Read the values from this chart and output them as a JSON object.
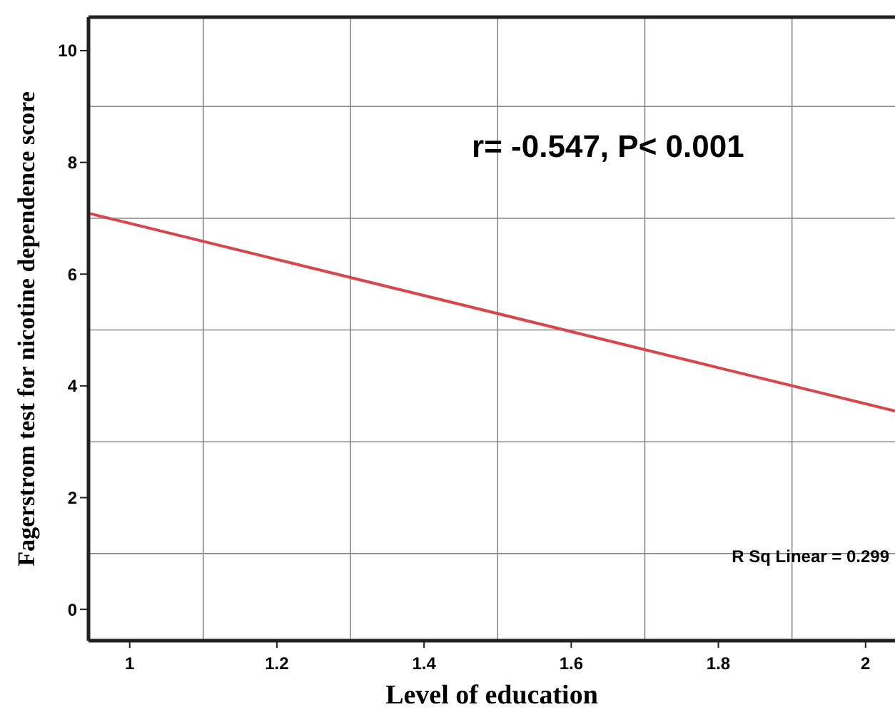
{
  "chart_data": {
    "type": "line",
    "xlabel": "Level of education",
    "ylabel": "Fagerstrom test for nicotine dependence score",
    "x": [
      0.944,
      2.04
    ],
    "series": [
      {
        "color": "#d9454a",
        "values": [
          7.09,
          3.55
        ]
      }
    ],
    "xlim": [
      0.944,
      2.04
    ],
    "xticks": [
      1,
      1.2,
      1.4,
      1.6,
      1.8,
      2
    ],
    "ylim": [
      -0.56,
      10.6
    ],
    "yticks": [
      0,
      2,
      4,
      6,
      8,
      10
    ],
    "grid": true,
    "marker": "none",
    "line_style": "solid",
    "annotations": [
      "r= -0.547, P< 0.001",
      "R Sq Linear = 0.299"
    ]
  }
}
